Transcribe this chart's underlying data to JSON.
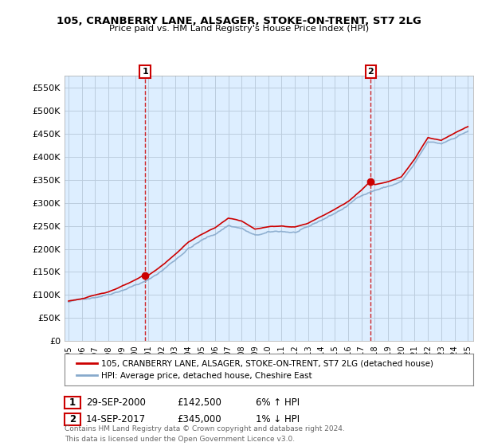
{
  "title": "105, CRANBERRY LANE, ALSAGER, STOKE-ON-TRENT, ST7 2LG",
  "subtitle": "Price paid vs. HM Land Registry's House Price Index (HPI)",
  "ylim": [
    0,
    575000
  ],
  "xlim_start": 1994.7,
  "xlim_end": 2025.4,
  "sale1_x": 2000.75,
  "sale1_y": 142500,
  "sale2_x": 2017.71,
  "sale2_y": 345000,
  "legend_line1": "105, CRANBERRY LANE, ALSAGER, STOKE-ON-TRENT, ST7 2LG (detached house)",
  "legend_line2": "HPI: Average price, detached house, Cheshire East",
  "note1_label": "1",
  "note1_date": "29-SEP-2000",
  "note1_price": "£142,500",
  "note1_hpi": "6% ↑ HPI",
  "note2_label": "2",
  "note2_date": "14-SEP-2017",
  "note2_price": "£345,000",
  "note2_hpi": "1% ↓ HPI",
  "footer": "Contains HM Land Registry data © Crown copyright and database right 2024.\nThis data is licensed under the Open Government Licence v3.0.",
  "house_color": "#cc0000",
  "hpi_color": "#88aacc",
  "chart_bg": "#ddeeff",
  "background_color": "#ffffff",
  "grid_color": "#bbccdd"
}
